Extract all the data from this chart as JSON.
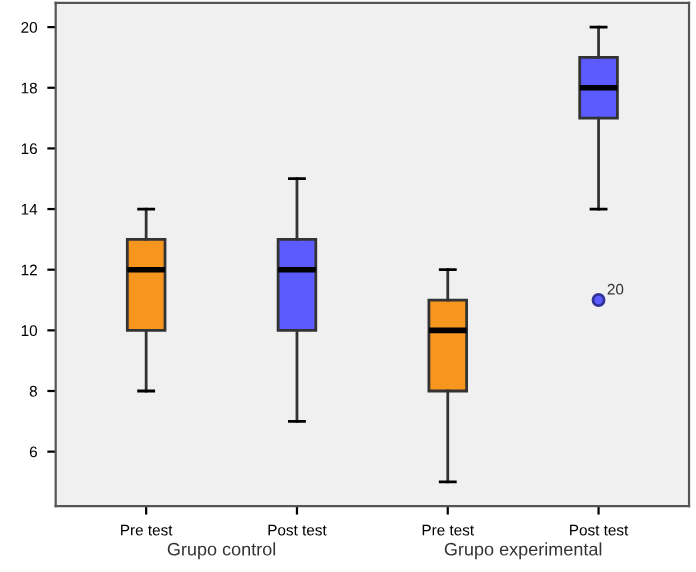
{
  "chart_data": {
    "type": "box",
    "categories": [
      "Pre test",
      "Post test",
      "Pre test",
      "Post test"
    ],
    "colors": [
      "#f7961e",
      "#5b5bff",
      "#f7961e",
      "#5b5bff"
    ],
    "boxes": [
      {
        "low": 8,
        "q1": 10,
        "median": 12,
        "q3": 13,
        "high": 14
      },
      {
        "low": 7,
        "q1": 10,
        "median": 12,
        "q3": 13,
        "high": 15
      },
      {
        "low": 5,
        "q1": 8,
        "median": 10,
        "q3": 11,
        "high": 12
      },
      {
        "low": 14,
        "q1": 17,
        "median": 18,
        "q3": 19,
        "high": 20,
        "outliers": [
          11
        ]
      }
    ],
    "ylim": [
      4.2,
      20.8
    ],
    "yticks": [
      6,
      8,
      10,
      12,
      14,
      16,
      18,
      20
    ],
    "grid": false,
    "legend": false,
    "annotations": [
      "Grupo control",
      "Grupo experimental",
      "20"
    ]
  }
}
